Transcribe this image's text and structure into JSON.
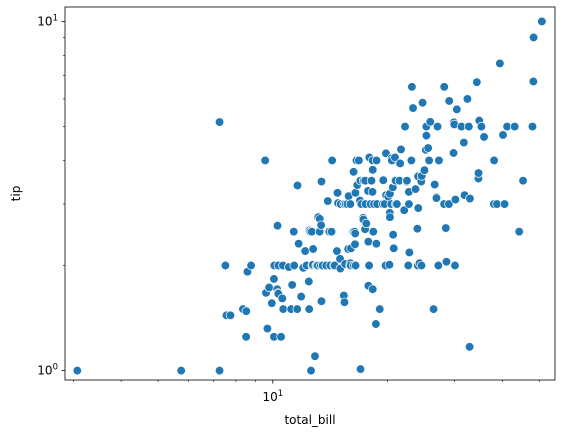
{
  "chart_data": {
    "type": "scatter",
    "xlabel": "total_bill",
    "ylabel": "tip",
    "xscale": "log",
    "yscale": "log",
    "xlim": [
      2.85,
      55
    ],
    "ylim": [
      0.94,
      11
    ],
    "x_ticks": [
      {
        "value": 10,
        "base": "10",
        "exp": "1"
      }
    ],
    "y_ticks": [
      {
        "value": 1,
        "base": "10",
        "exp": "0"
      },
      {
        "value": 10,
        "base": "10",
        "exp": "1"
      }
    ],
    "marker_color": "#1f77b4",
    "marker_edge": "#ffffff",
    "grid": false,
    "legend": "none",
    "points": [
      [
        3.07,
        1.0
      ],
      [
        5.75,
        1.0
      ],
      [
        7.25,
        1.0
      ],
      [
        7.25,
        5.15
      ],
      [
        7.51,
        2.0
      ],
      [
        7.56,
        1.44
      ],
      [
        7.74,
        1.44
      ],
      [
        8.35,
        1.5
      ],
      [
        8.51,
        1.25
      ],
      [
        8.52,
        1.48
      ],
      [
        8.58,
        1.92
      ],
      [
        8.77,
        2.0
      ],
      [
        9.55,
        4.0
      ],
      [
        9.6,
        1.67
      ],
      [
        9.68,
        1.32
      ],
      [
        9.78,
        1.73
      ],
      [
        9.94,
        1.56
      ],
      [
        10.07,
        1.83
      ],
      [
        10.07,
        1.25
      ],
      [
        10.09,
        2.0
      ],
      [
        10.27,
        1.71
      ],
      [
        10.29,
        2.6
      ],
      [
        10.33,
        1.67
      ],
      [
        10.34,
        1.66
      ],
      [
        10.34,
        2.0
      ],
      [
        10.51,
        1.25
      ],
      [
        10.59,
        1.61
      ],
      [
        10.63,
        2.0
      ],
      [
        10.65,
        1.5
      ],
      [
        11.02,
        1.98
      ],
      [
        11.17,
        1.5
      ],
      [
        11.24,
        1.76
      ],
      [
        11.35,
        2.5
      ],
      [
        11.38,
        2.0
      ],
      [
        11.59,
        1.5
      ],
      [
        11.61,
        3.39
      ],
      [
        11.69,
        2.31
      ],
      [
        11.87,
        1.63
      ],
      [
        12.02,
        1.97
      ],
      [
        12.16,
        2.2
      ],
      [
        12.26,
        2.0
      ],
      [
        12.43,
        1.8
      ],
      [
        12.46,
        1.5
      ],
      [
        12.48,
        2.52
      ],
      [
        12.54,
        2.5
      ],
      [
        12.6,
        1.0
      ],
      [
        12.66,
        2.5
      ],
      [
        12.69,
        2.0
      ],
      [
        12.74,
        2.01
      ],
      [
        12.76,
        2.23
      ],
      [
        12.9,
        1.1
      ],
      [
        13.0,
        2.0
      ],
      [
        13.03,
        2.0
      ],
      [
        13.13,
        2.0
      ],
      [
        13.16,
        2.75
      ],
      [
        13.27,
        2.5
      ],
      [
        13.28,
        2.72
      ],
      [
        13.37,
        2.0
      ],
      [
        13.39,
        2.61
      ],
      [
        13.42,
        3.48
      ],
      [
        13.42,
        1.58
      ],
      [
        13.51,
        2.0
      ],
      [
        13.81,
        2.0
      ],
      [
        13.94,
        3.06
      ],
      [
        14.07,
        2.5
      ],
      [
        14.15,
        2.0
      ],
      [
        14.26,
        2.5
      ],
      [
        14.31,
        4.0
      ],
      [
        14.48,
        2.0
      ],
      [
        14.52,
        2.0
      ],
      [
        14.73,
        2.2
      ],
      [
        14.78,
        3.23
      ],
      [
        14.83,
        3.02
      ],
      [
        15.01,
        2.09
      ],
      [
        15.04,
        1.96
      ],
      [
        15.06,
        3.0
      ],
      [
        15.36,
        1.64
      ],
      [
        15.38,
        3.0
      ],
      [
        15.42,
        1.57
      ],
      [
        15.48,
        2.02
      ],
      [
        15.53,
        3.0
      ],
      [
        15.69,
        3.0
      ],
      [
        15.77,
        2.23
      ],
      [
        15.81,
        3.16
      ],
      [
        15.95,
        2.0
      ],
      [
        15.98,
        2.03
      ],
      [
        15.98,
        3.0
      ],
      [
        16.0,
        2.0
      ],
      [
        16.04,
        2.24
      ],
      [
        16.27,
        2.5
      ],
      [
        16.29,
        3.71
      ],
      [
        16.31,
        2.0
      ],
      [
        16.4,
        2.5
      ],
      [
        16.43,
        2.3
      ],
      [
        16.45,
        2.47
      ],
      [
        16.47,
        3.23
      ],
      [
        16.49,
        2.0
      ],
      [
        16.58,
        4.0
      ],
      [
        16.66,
        3.4
      ],
      [
        16.82,
        4.0
      ],
      [
        16.93,
        3.07
      ],
      [
        16.97,
        3.5
      ],
      [
        16.99,
        1.01
      ],
      [
        17.07,
        3.0
      ],
      [
        17.26,
        2.74
      ],
      [
        17.29,
        2.71
      ],
      [
        17.31,
        3.5
      ],
      [
        17.46,
        2.54
      ],
      [
        17.47,
        3.5
      ],
      [
        17.51,
        3.0
      ],
      [
        17.59,
        2.64
      ],
      [
        17.78,
        3.27
      ],
      [
        17.81,
        2.34
      ],
      [
        17.82,
        1.75
      ],
      [
        17.89,
        2.0
      ],
      [
        17.92,
        4.08
      ],
      [
        18.04,
        3.0
      ],
      [
        18.15,
        3.5
      ],
      [
        18.24,
        3.76
      ],
      [
        18.26,
        3.25
      ],
      [
        18.28,
        4.0
      ],
      [
        18.29,
        3.76
      ],
      [
        18.29,
        1.71
      ],
      [
        18.35,
        2.5
      ],
      [
        18.43,
        3.0
      ],
      [
        18.64,
        1.36
      ],
      [
        18.69,
        2.31
      ],
      [
        18.71,
        4.0
      ],
      [
        18.78,
        3.0
      ],
      [
        19.08,
        1.5
      ],
      [
        19.44,
        3.0
      ],
      [
        19.49,
        3.51
      ],
      [
        19.65,
        3.0
      ],
      [
        19.77,
        2.0
      ],
      [
        19.81,
        4.19
      ],
      [
        19.82,
        3.18
      ],
      [
        20.08,
        3.15
      ],
      [
        20.23,
        2.01
      ],
      [
        20.27,
        2.83
      ],
      [
        20.29,
        3.21
      ],
      [
        20.29,
        2.75
      ],
      [
        20.45,
        3.0
      ],
      [
        20.49,
        4.06
      ],
      [
        20.53,
        4.0
      ],
      [
        20.65,
        3.35
      ],
      [
        20.69,
        2.45
      ],
      [
        20.76,
        2.24
      ],
      [
        20.9,
        3.5
      ],
      [
        20.92,
        4.08
      ],
      [
        21.01,
        3.5
      ],
      [
        21.01,
        3.0
      ],
      [
        21.16,
        3.0
      ],
      [
        21.5,
        3.5
      ],
      [
        21.58,
        3.92
      ],
      [
        21.7,
        4.3
      ],
      [
        22.12,
        2.88
      ],
      [
        22.23,
        5.0
      ],
      [
        22.42,
        3.48
      ],
      [
        22.49,
        3.5
      ],
      [
        22.67,
        2.0
      ],
      [
        22.75,
        3.25
      ],
      [
        22.76,
        3.0
      ],
      [
        22.82,
        2.18
      ],
      [
        23.1,
        4.0
      ],
      [
        23.17,
        6.5
      ],
      [
        23.33,
        5.65
      ],
      [
        23.68,
        3.31
      ],
      [
        23.95,
        2.55
      ],
      [
        24.01,
        2.0
      ],
      [
        24.06,
        3.6
      ],
      [
        24.08,
        2.92
      ],
      [
        24.27,
        2.03
      ],
      [
        24.52,
        3.48
      ],
      [
        24.55,
        2.0
      ],
      [
        24.59,
        3.61
      ],
      [
        24.71,
        5.85
      ],
      [
        25.0,
        3.75
      ],
      [
        25.21,
        4.29
      ],
      [
        25.28,
        5.0
      ],
      [
        25.29,
        4.71
      ],
      [
        25.56,
        4.34
      ],
      [
        25.71,
        4.0
      ],
      [
        25.89,
        5.16
      ],
      [
        26.41,
        1.5
      ],
      [
        26.59,
        3.41
      ],
      [
        26.86,
        3.14
      ],
      [
        26.88,
        3.12
      ],
      [
        27.05,
        5.0
      ],
      [
        27.18,
        2.0
      ],
      [
        27.2,
        4.0
      ],
      [
        27.28,
        4.0
      ],
      [
        28.15,
        3.0
      ],
      [
        28.17,
        6.5
      ],
      [
        28.44,
        2.56
      ],
      [
        28.55,
        2.05
      ],
      [
        28.97,
        3.0
      ],
      [
        29.03,
        5.92
      ],
      [
        29.8,
        4.2
      ],
      [
        29.85,
        5.14
      ],
      [
        29.93,
        5.07
      ],
      [
        30.06,
        2.0
      ],
      [
        30.14,
        3.09
      ],
      [
        30.4,
        5.6
      ],
      [
        31.27,
        5.0
      ],
      [
        31.71,
        4.5
      ],
      [
        31.85,
        3.18
      ],
      [
        32.4,
        6.0
      ],
      [
        32.68,
        5.0
      ],
      [
        32.83,
        1.17
      ],
      [
        32.9,
        3.11
      ],
      [
        34.3,
        6.7
      ],
      [
        34.63,
        3.55
      ],
      [
        34.65,
        3.68
      ],
      [
        34.81,
        5.2
      ],
      [
        35.26,
        5.0
      ],
      [
        35.83,
        4.67
      ],
      [
        38.01,
        3.0
      ],
      [
        38.07,
        4.0
      ],
      [
        38.73,
        3.0
      ],
      [
        39.42,
        7.58
      ],
      [
        40.17,
        4.73
      ],
      [
        40.55,
        3.0
      ],
      [
        41.19,
        5.0
      ],
      [
        43.11,
        5.0
      ],
      [
        44.3,
        2.5
      ],
      [
        45.35,
        3.5
      ],
      [
        48.17,
        5.0
      ],
      [
        48.27,
        6.73
      ],
      [
        48.33,
        9.0
      ],
      [
        50.81,
        10.0
      ],
      [
        48.0,
        5.0
      ]
    ]
  }
}
